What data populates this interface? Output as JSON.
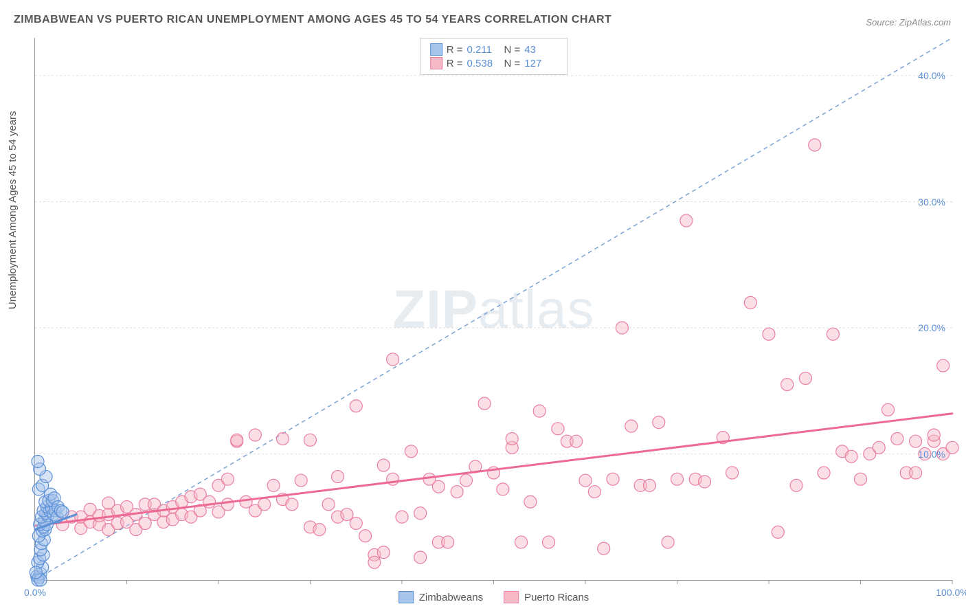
{
  "title": "ZIMBABWEAN VS PUERTO RICAN UNEMPLOYMENT AMONG AGES 45 TO 54 YEARS CORRELATION CHART",
  "source_label": "Source: ZipAtlas.com",
  "y_axis_label": "Unemployment Among Ages 45 to 54 years",
  "watermark": {
    "bold": "ZIP",
    "rest": "atlas"
  },
  "chart": {
    "type": "scatter",
    "background_color": "#ffffff",
    "grid_color": "#dddddd",
    "axis_color": "#999999",
    "tick_label_color": "#5b8fd6",
    "xlim": [
      0,
      100
    ],
    "ylim": [
      0,
      43
    ],
    "x_ticks": [
      0,
      10,
      20,
      30,
      40,
      50,
      60,
      70,
      80,
      90,
      100
    ],
    "x_tick_labels": {
      "0": "0.0%",
      "100": "100.0%"
    },
    "y_ticks": [
      10,
      20,
      30,
      40
    ],
    "y_tick_labels": {
      "10": "10.0%",
      "20": "20.0%",
      "30": "30.0%",
      "40": "40.0%"
    },
    "diagonal_reference": {
      "start": [
        0,
        0
      ],
      "end": [
        100,
        43
      ],
      "color": "#7ba3d6",
      "dash": "6,5",
      "width": 1.5
    },
    "marker_radius": 9,
    "marker_opacity": 0.45,
    "legend": {
      "series1": {
        "name": "Zimbabweans",
        "fill": "#a7c4ea",
        "stroke": "#5b8fd6"
      },
      "series2": {
        "name": "Puerto Ricans",
        "fill": "#f6b9c8",
        "stroke": "#e97fa1"
      }
    },
    "stats": {
      "series1": {
        "R": "0.211",
        "N": "43"
      },
      "series2": {
        "R": "0.538",
        "N": "127"
      }
    },
    "series1": {
      "color_fill": "#a7c4ea",
      "color_stroke": "#5b8fd6",
      "trend": {
        "start": [
          0,
          4.0
        ],
        "end": [
          4.5,
          5.2
        ],
        "color": "#5b8fd6",
        "width": 3
      },
      "points": [
        [
          0.2,
          0.3
        ],
        [
          0.4,
          0.2
        ],
        [
          0.6,
          0.5
        ],
        [
          0.8,
          1.0
        ],
        [
          0.3,
          1.4
        ],
        [
          0.5,
          1.7
        ],
        [
          0.9,
          2.0
        ],
        [
          0.6,
          2.4
        ],
        [
          0.7,
          2.9
        ],
        [
          1.0,
          3.2
        ],
        [
          0.4,
          3.5
        ],
        [
          0.8,
          3.9
        ],
        [
          1.1,
          4.0
        ],
        [
          0.9,
          4.2
        ],
        [
          0.5,
          4.4
        ],
        [
          1.3,
          4.4
        ],
        [
          1.0,
          4.7
        ],
        [
          0.7,
          5.0
        ],
        [
          1.4,
          5.1
        ],
        [
          1.2,
          5.3
        ],
        [
          0.9,
          5.5
        ],
        [
          1.6,
          5.5
        ],
        [
          1.3,
          5.8
        ],
        [
          1.1,
          6.2
        ],
        [
          1.8,
          5.7
        ],
        [
          2.0,
          5.2
        ],
        [
          2.2,
          5.5
        ],
        [
          2.4,
          5.0
        ],
        [
          1.5,
          6.3
        ],
        [
          1.9,
          6.3
        ],
        [
          1.7,
          6.8
        ],
        [
          2.1,
          6.5
        ],
        [
          2.5,
          5.8
        ],
        [
          2.8,
          5.5
        ],
        [
          3.0,
          5.4
        ],
        [
          0.3,
          0.0
        ],
        [
          0.6,
          0.0
        ],
        [
          0.1,
          0.6
        ],
        [
          0.4,
          7.2
        ],
        [
          0.8,
          7.5
        ],
        [
          1.2,
          8.2
        ],
        [
          0.5,
          8.8
        ],
        [
          0.3,
          9.4
        ]
      ]
    },
    "series2": {
      "color_fill": "#f6b9c8",
      "color_stroke": "#e97fa1",
      "trend": {
        "start": [
          0,
          4.3
        ],
        "end": [
          100,
          13.2
        ],
        "color": "#ed6a94",
        "width": 3
      },
      "points": [
        [
          3,
          4.4
        ],
        [
          4,
          5.0
        ],
        [
          5,
          4.1
        ],
        [
          5,
          5.0
        ],
        [
          6,
          4.6
        ],
        [
          6,
          5.6
        ],
        [
          7,
          4.4
        ],
        [
          7,
          5.1
        ],
        [
          8,
          4.0
        ],
        [
          8,
          5.2
        ],
        [
          8,
          6.1
        ],
        [
          9,
          4.5
        ],
        [
          9,
          5.5
        ],
        [
          10,
          4.6
        ],
        [
          10,
          5.8
        ],
        [
          11,
          4.0
        ],
        [
          11,
          5.2
        ],
        [
          12,
          4.5
        ],
        [
          12,
          6.0
        ],
        [
          13,
          5.2
        ],
        [
          13,
          6.0
        ],
        [
          14,
          4.6
        ],
        [
          14,
          5.5
        ],
        [
          15,
          4.8
        ],
        [
          15,
          5.8
        ],
        [
          16,
          5.2
        ],
        [
          16,
          6.2
        ],
        [
          17,
          5.0
        ],
        [
          17,
          6.6
        ],
        [
          18,
          5.5
        ],
        [
          18,
          6.8
        ],
        [
          19,
          6.2
        ],
        [
          20,
          5.4
        ],
        [
          20,
          7.5
        ],
        [
          21,
          6.0
        ],
        [
          21,
          8.0
        ],
        [
          22,
          11.0
        ],
        [
          22,
          11.1
        ],
        [
          23,
          6.2
        ],
        [
          24,
          5.5
        ],
        [
          24,
          11.5
        ],
        [
          25,
          6.0
        ],
        [
          26,
          7.5
        ],
        [
          27,
          6.4
        ],
        [
          27,
          11.2
        ],
        [
          28,
          6.0
        ],
        [
          29,
          7.9
        ],
        [
          30,
          4.2
        ],
        [
          30,
          11.1
        ],
        [
          31,
          4.0
        ],
        [
          32,
          6.0
        ],
        [
          33,
          5.0
        ],
        [
          33,
          8.2
        ],
        [
          34,
          5.2
        ],
        [
          35,
          4.5
        ],
        [
          35,
          13.8
        ],
        [
          36,
          3.5
        ],
        [
          37,
          2.0
        ],
        [
          37,
          1.4
        ],
        [
          38,
          2.2
        ],
        [
          38,
          9.1
        ],
        [
          39,
          8.0
        ],
        [
          39,
          17.5
        ],
        [
          40,
          5.0
        ],
        [
          41,
          10.2
        ],
        [
          42,
          1.8
        ],
        [
          42,
          5.3
        ],
        [
          43,
          8.0
        ],
        [
          44,
          3.0
        ],
        [
          44,
          7.4
        ],
        [
          45,
          3.0
        ],
        [
          46,
          7.0
        ],
        [
          47,
          7.9
        ],
        [
          48,
          9.0
        ],
        [
          49,
          14.0
        ],
        [
          50,
          8.5
        ],
        [
          51,
          7.2
        ],
        [
          52,
          10.5
        ],
        [
          52,
          11.2
        ],
        [
          53,
          3.0
        ],
        [
          54,
          6.2
        ],
        [
          55,
          13.4
        ],
        [
          56,
          3.0
        ],
        [
          57,
          12.0
        ],
        [
          58,
          11.0
        ],
        [
          59,
          11.0
        ],
        [
          60,
          7.9
        ],
        [
          61,
          7.0
        ],
        [
          62,
          2.5
        ],
        [
          63,
          8.0
        ],
        [
          64,
          20.0
        ],
        [
          65,
          12.2
        ],
        [
          66,
          7.5
        ],
        [
          67,
          7.5
        ],
        [
          68,
          12.5
        ],
        [
          69,
          3.0
        ],
        [
          70,
          8.0
        ],
        [
          71,
          28.5
        ],
        [
          72,
          8.0
        ],
        [
          73,
          7.8
        ],
        [
          75,
          11.3
        ],
        [
          76,
          8.5
        ],
        [
          78,
          22.0
        ],
        [
          80,
          19.5
        ],
        [
          81,
          3.8
        ],
        [
          82,
          15.5
        ],
        [
          83,
          7.5
        ],
        [
          84,
          16.0
        ],
        [
          85,
          34.5
        ],
        [
          86,
          8.5
        ],
        [
          87,
          19.5
        ],
        [
          88,
          10.2
        ],
        [
          89,
          9.8
        ],
        [
          90,
          8.0
        ],
        [
          91,
          10.0
        ],
        [
          92,
          10.5
        ],
        [
          93,
          13.5
        ],
        [
          94,
          11.2
        ],
        [
          95,
          8.5
        ],
        [
          96,
          8.5
        ],
        [
          96,
          11.0
        ],
        [
          97,
          10.0
        ],
        [
          98,
          11.0
        ],
        [
          98,
          11.5
        ],
        [
          99,
          10.0
        ],
        [
          99,
          17.0
        ],
        [
          100,
          10.5
        ]
      ]
    }
  }
}
